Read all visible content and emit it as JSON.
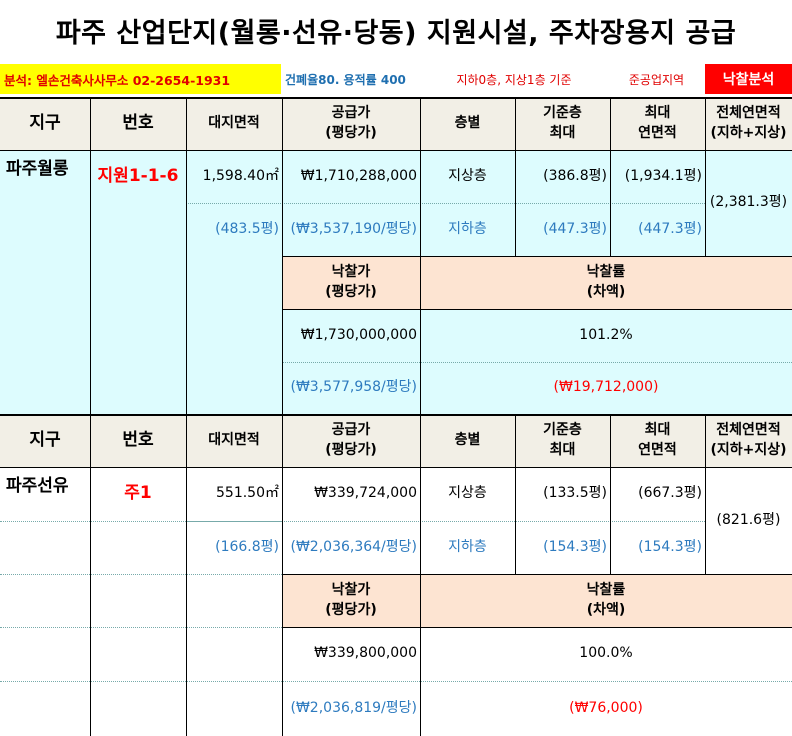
{
  "title": "파주 산업단지(월롱·선유·당동) 지원시설, 주차장용지 공급",
  "info": {
    "office": "분석: 엘손건축사사무소 02-2654-1931",
    "ratio": "건폐율80. 용적률 400",
    "floors": "지하0층, 지상1층 기준",
    "zone": "준공업지역",
    "badge": "낙찰분석"
  },
  "headers": {
    "district": "지구",
    "number": "번호",
    "land": "대지면적",
    "supply": "공급가\n(평당가)",
    "floor": "층별",
    "base": "기준층\n최대",
    "max": "최대\n연면적",
    "total": "전체연면적\n(지하+지상)",
    "bid": "낙찰가\n(평당가)",
    "rate": "낙찰률\n(차액)"
  },
  "blocks": [
    {
      "district": "파주월롱",
      "number": "지원1-1-6",
      "land_area": "1,598.40㎡",
      "land_pyeong": "(483.5평)",
      "supply_price": "₩1,710,288,000",
      "supply_per_pyeong": "(₩3,537,190/평당)",
      "floor_above": "지상층",
      "floor_below": "지하층",
      "base_above": "(386.8평)",
      "base_below": "(447.3평)",
      "max_above": "(1,934.1평)",
      "max_below": "(447.3평)",
      "total_area": "(2,381.3평)",
      "bid_price": "₩1,730,000,000",
      "bid_per_pyeong": "(₩3,577,958/평당)",
      "bid_rate": "101.2%",
      "bid_diff": "(₩19,712,000)"
    },
    {
      "district": "파주선유",
      "number": "주1",
      "land_area": "551.50㎡",
      "land_pyeong": "(166.8평)",
      "supply_price": "₩339,724,000",
      "supply_per_pyeong": "(₩2,036,364/평당)",
      "floor_above": "지상층",
      "floor_below": "지하층",
      "base_above": "(133.5평)",
      "base_below": "(154.3평)",
      "max_above": "(667.3평)",
      "max_below": "(154.3평)",
      "total_area": "(821.6평)",
      "bid_price": "₩339,800,000",
      "bid_per_pyeong": "(₩2,036,819/평당)",
      "bid_rate": "100.0%",
      "bid_diff": "(₩76,000)"
    }
  ]
}
